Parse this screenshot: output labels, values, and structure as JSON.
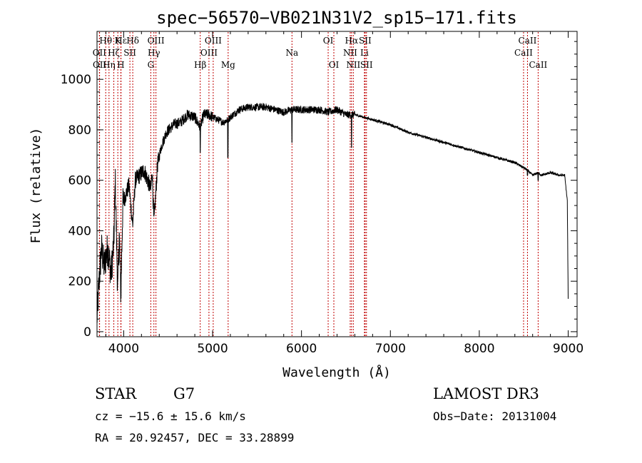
{
  "chart_data": {
    "type": "line",
    "title": "spec−56570−VB021N31V2_sp15−171.fits",
    "xlabel": "Wavelength (Å)",
    "ylabel": "Flux (relative)",
    "xlim": [
      3700,
      9100
    ],
    "ylim": [
      -20,
      1190
    ],
    "xticks": [
      4000,
      5000,
      6000,
      7000,
      8000,
      9000
    ],
    "yticks": [
      0,
      200,
      400,
      600,
      800,
      1000
    ],
    "spectrum_anchors": {
      "x": [
        3700,
        3720,
        3750,
        3780,
        3820,
        3860,
        3890,
        3905,
        3933,
        3950,
        3968,
        3990,
        4020,
        4060,
        4101,
        4130,
        4180,
        4230,
        4280,
        4305,
        4320,
        4340,
        4380,
        4420,
        4480,
        4560,
        4640,
        4720,
        4800,
        4861,
        4900,
        4960,
        5000,
        5060,
        5120,
        5172,
        5200,
        5300,
        5400,
        5600,
        5800,
        5893,
        5950,
        6050,
        6200,
        6300,
        6400,
        6500,
        6563,
        6600,
        6700,
        6800,
        7000,
        7200,
        7400,
        7600,
        7800,
        8000,
        8200,
        8400,
        8498,
        8542,
        8600,
        8662,
        8700,
        8800,
        8900,
        8960,
        8990,
        9000
      ],
      "y": [
        50,
        180,
        330,
        260,
        330,
        230,
        360,
        600,
        150,
        390,
        140,
        500,
        540,
        580,
        420,
        600,
        620,
        640,
        590,
        560,
        640,
        430,
        660,
        730,
        790,
        820,
        830,
        860,
        850,
        810,
        860,
        860,
        850,
        840,
        830,
        840,
        850,
        880,
        890,
        890,
        870,
        880,
        880,
        880,
        880,
        870,
        880,
        860,
        860,
        860,
        850,
        840,
        820,
        790,
        770,
        750,
        730,
        710,
        690,
        670,
        650,
        640,
        620,
        630,
        620,
        630,
        620,
        620,
        520,
        130
      ]
    },
    "absorption_dips": [
      {
        "x": 4861,
        "y": 710
      },
      {
        "x": 5172,
        "y": 690
      },
      {
        "x": 5893,
        "y": 750
      },
      {
        "x": 6563,
        "y": 730
      },
      {
        "x": 8542,
        "y": 620
      },
      {
        "x": 8662,
        "y": 600
      }
    ],
    "line_markers": [
      {
        "label": "Hθ",
        "x": 3798,
        "row": 0
      },
      {
        "label": "OII",
        "x": 3727,
        "row": 1
      },
      {
        "label": "OII",
        "x": 3729,
        "row": 2
      },
      {
        "label": "Hη",
        "x": 3835,
        "row": 2
      },
      {
        "label": "Hζ",
        "x": 3889,
        "row": 1
      },
      {
        "label": "K",
        "x": 3934,
        "row": 0
      },
      {
        "label": "Hε",
        "x": 3970,
        "row": 0
      },
      {
        "label": "SII",
        "x": 4070,
        "row": 1
      },
      {
        "label": "H",
        "x": 3968,
        "row": 2
      },
      {
        "label": "Hδ",
        "x": 4102,
        "row": 0
      },
      {
        "label": "OIII",
        "x": 4363,
        "row": 0
      },
      {
        "label": "Hγ",
        "x": 4340,
        "row": 1
      },
      {
        "label": "G",
        "x": 4305,
        "row": 2
      },
      {
        "label": "Hβ",
        "x": 4861,
        "row": 2
      },
      {
        "label": "OIII",
        "x": 5007,
        "row": 0
      },
      {
        "label": "OIII",
        "x": 4959,
        "row": 1
      },
      {
        "label": "Mg",
        "x": 5175,
        "row": 2
      },
      {
        "label": "Na",
        "x": 5893,
        "row": 1
      },
      {
        "label": "OI",
        "x": 6300,
        "row": 0
      },
      {
        "label": "OI",
        "x": 6364,
        "row": 2
      },
      {
        "label": "Hα",
        "x": 6563,
        "row": 0
      },
      {
        "label": "NII",
        "x": 6548,
        "row": 1
      },
      {
        "label": "NII",
        "x": 6583,
        "row": 2
      },
      {
        "label": "SII",
        "x": 6716,
        "row": 0
      },
      {
        "label": "Li",
        "x": 6708,
        "row": 1
      },
      {
        "label": "SII",
        "x": 6731,
        "row": 2
      },
      {
        "label": "CaII",
        "x": 8542,
        "row": 0
      },
      {
        "label": "CaII",
        "x": 8498,
        "row": 1
      },
      {
        "label": "CaII",
        "x": 8662,
        "row": 2
      }
    ]
  },
  "footer": {
    "object_class": "STAR",
    "subclass": "G7",
    "survey": "LAMOST DR3",
    "redshift": "cz = −15.6 ± 15.6 km/s",
    "obs_date": "Obs−Date: 20131004",
    "coords": "RA =  20.92457, DEC =  33.28899"
  }
}
